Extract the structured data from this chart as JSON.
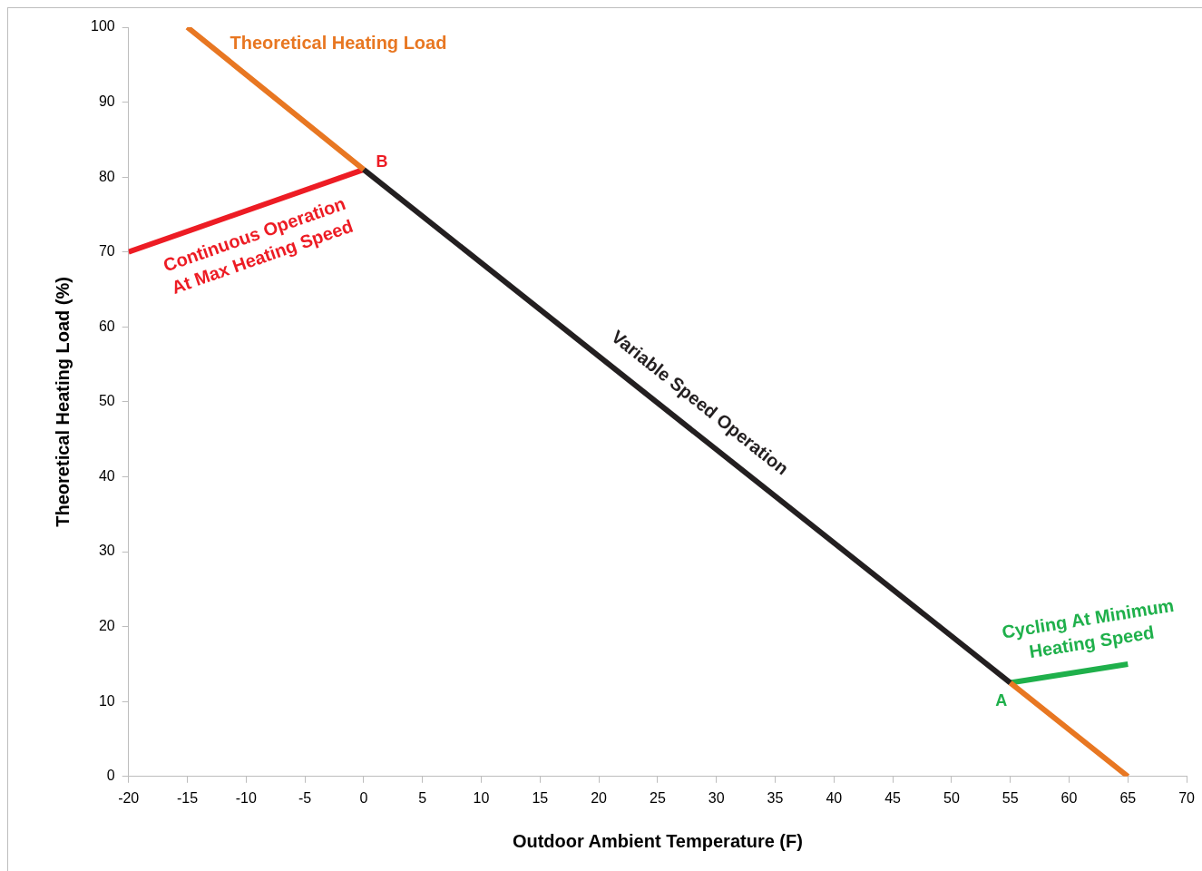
{
  "chart_data": {
    "type": "line",
    "xlabel": "Outdoor Ambient Temperature (F)",
    "ylabel": "Theoretical Heating Load (%)",
    "xlim": [
      -20,
      70
    ],
    "xticks": [
      -20,
      -15,
      -10,
      -5,
      0,
      5,
      10,
      15,
      20,
      25,
      30,
      35,
      40,
      45,
      50,
      55,
      60,
      65,
      70
    ],
    "ylim": [
      0,
      100
    ],
    "yticks": [
      0,
      10,
      20,
      30,
      40,
      50,
      60,
      70,
      80,
      90,
      100
    ],
    "grid": false,
    "legend": false,
    "marker": "none",
    "line_style": "solid",
    "series": [
      {
        "name": "Theoretical Heating Load",
        "color": "#e87722",
        "x": [
          -15,
          0,
          27.5,
          55,
          65
        ],
        "values": [
          100,
          81,
          null,
          12.5,
          0
        ]
      },
      {
        "name": "Variable Speed Operation",
        "color": "#231f20",
        "x": [
          0,
          55
        ],
        "values": [
          81,
          12.5
        ]
      },
      {
        "name": "Continuous Operation At Max Heating Speed",
        "color": "#ed1c24",
        "x": [
          -20,
          0
        ],
        "values": [
          70,
          81
        ]
      },
      {
        "name": "Cycling At Minimum Heating Speed",
        "color": "#1fb04b",
        "x": [
          55,
          65
        ],
        "values": [
          12.5,
          15
        ]
      }
    ],
    "annotations": [
      {
        "text": "B",
        "x": 0,
        "y": 81
      },
      {
        "text": "A",
        "x": 55,
        "y": 12.5
      }
    ]
  }
}
